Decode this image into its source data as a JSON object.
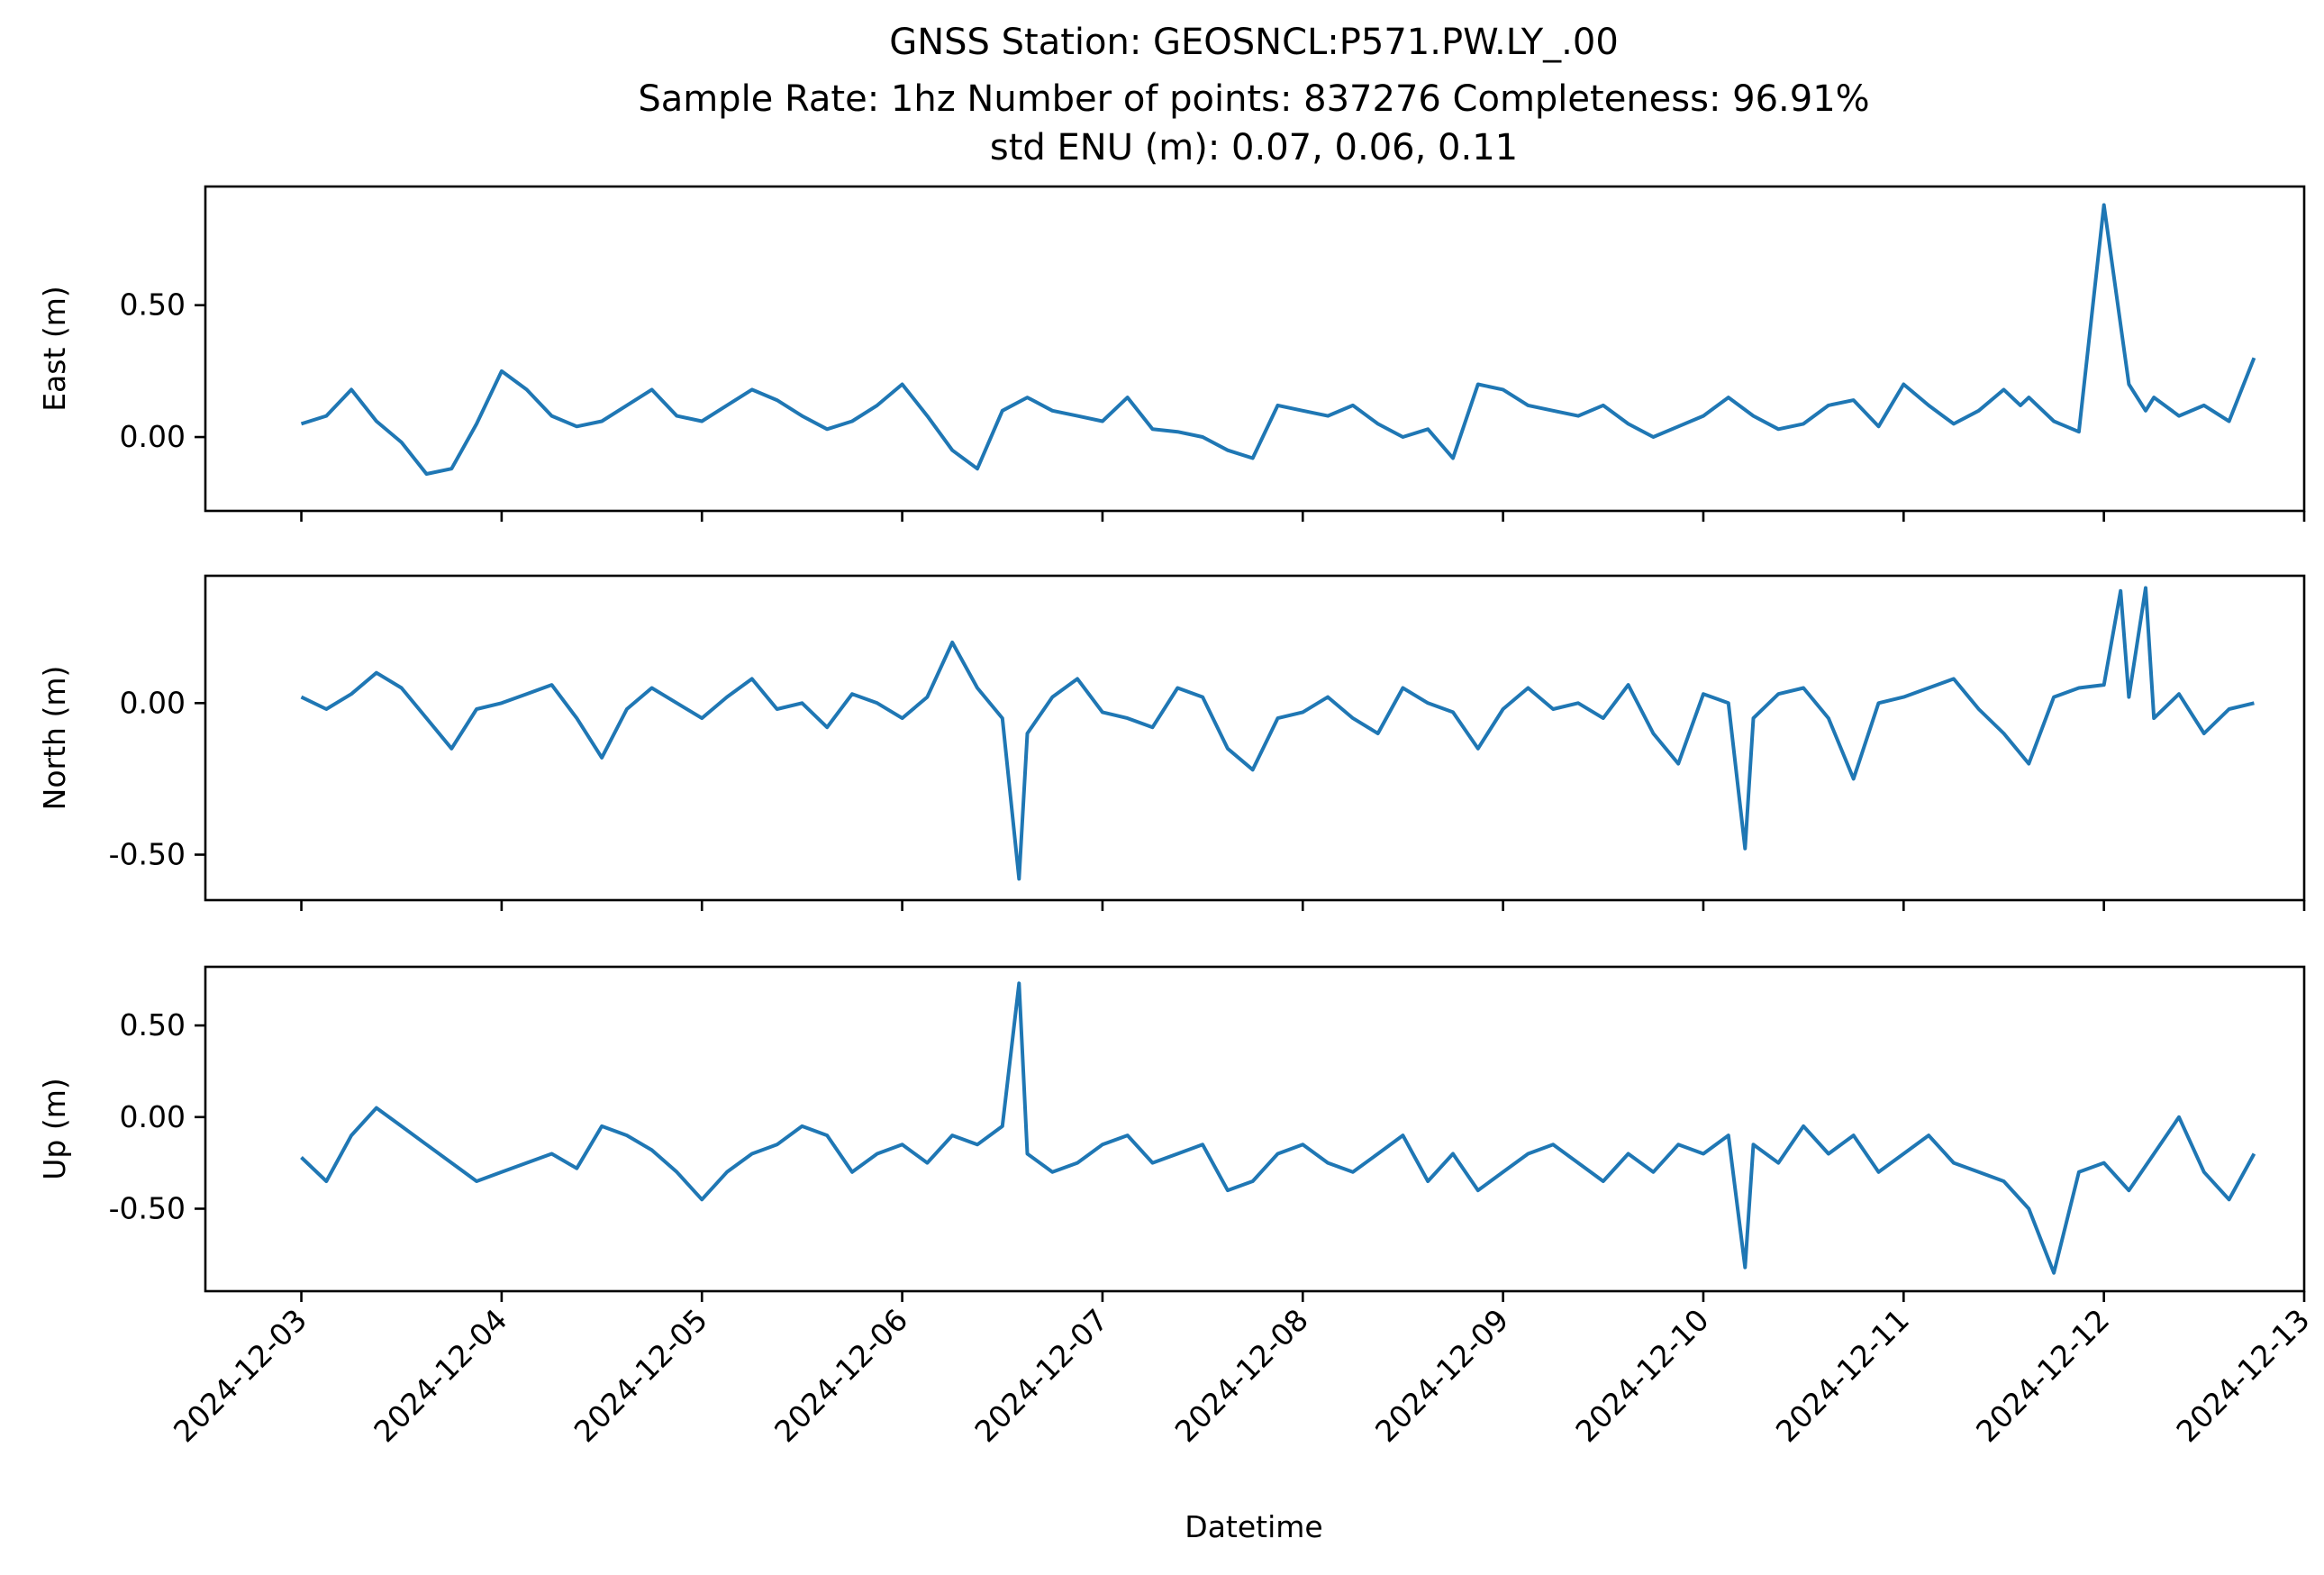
{
  "chart_data": {
    "type": "line",
    "title_lines": [
      "GNSS Station: GEOSNCL:P571.PW.LY_.00",
      "Sample Rate: 1hz   Number of points: 837276    Completeness:  96.91%",
      "std ENU (m):  0.07, 0.06, 0.11"
    ],
    "xlabel": "Datetime",
    "x_tick_labels": [
      "2024-12-03",
      "2024-12-04",
      "2024-12-05",
      "2024-12-06",
      "2024-12-07",
      "2024-12-08",
      "2024-12-09",
      "2024-12-10",
      "2024-12-11",
      "2024-12-12",
      "2024-12-13"
    ],
    "xlim": [
      "2024-12-02T12:30",
      "2024-12-13T00:00"
    ],
    "color": "#1f77b4",
    "panels": [
      {
        "ylabel": "East (m)",
        "ylim": [
          -0.28,
          0.95
        ],
        "yticks": [
          0.0,
          0.5
        ],
        "ytick_labels": [
          "0.00",
          "0.50"
        ],
        "x": [
          "2024-12-03T00:00",
          "2024-12-03T03:00",
          "2024-12-03T06:00",
          "2024-12-03T09:00",
          "2024-12-03T12:00",
          "2024-12-03T15:00",
          "2024-12-03T18:00",
          "2024-12-03T21:00",
          "2024-12-04T00:00",
          "2024-12-04T03:00",
          "2024-12-04T06:00",
          "2024-12-04T09:00",
          "2024-12-04T12:00",
          "2024-12-04T15:00",
          "2024-12-04T18:00",
          "2024-12-04T21:00",
          "2024-12-05T00:00",
          "2024-12-05T03:00",
          "2024-12-05T06:00",
          "2024-12-05T09:00",
          "2024-12-05T12:00",
          "2024-12-05T15:00",
          "2024-12-05T18:00",
          "2024-12-05T21:00",
          "2024-12-06T00:00",
          "2024-12-06T03:00",
          "2024-12-06T06:00",
          "2024-12-06T09:00",
          "2024-12-06T12:00",
          "2024-12-06T15:00",
          "2024-12-06T18:00",
          "2024-12-06T21:00",
          "2024-12-07T00:00",
          "2024-12-07T03:00",
          "2024-12-07T06:00",
          "2024-12-07T09:00",
          "2024-12-07T12:00",
          "2024-12-07T15:00",
          "2024-12-07T18:00",
          "2024-12-07T21:00",
          "2024-12-08T00:00",
          "2024-12-08T03:00",
          "2024-12-08T06:00",
          "2024-12-08T09:00",
          "2024-12-08T12:00",
          "2024-12-08T15:00",
          "2024-12-08T18:00",
          "2024-12-08T21:00",
          "2024-12-09T00:00",
          "2024-12-09T03:00",
          "2024-12-09T06:00",
          "2024-12-09T09:00",
          "2024-12-09T12:00",
          "2024-12-09T15:00",
          "2024-12-09T18:00",
          "2024-12-09T21:00",
          "2024-12-10T00:00",
          "2024-12-10T03:00",
          "2024-12-10T06:00",
          "2024-12-10T09:00",
          "2024-12-10T12:00",
          "2024-12-10T15:00",
          "2024-12-10T18:00",
          "2024-12-10T21:00",
          "2024-12-11T00:00",
          "2024-12-11T03:00",
          "2024-12-11T06:00",
          "2024-12-11T09:00",
          "2024-12-11T12:00",
          "2024-12-11T14:00",
          "2024-12-11T15:00",
          "2024-12-11T18:00",
          "2024-12-11T21:00",
          "2024-12-12T00:00",
          "2024-12-12T03:00",
          "2024-12-12T05:00",
          "2024-12-12T06:00",
          "2024-12-12T09:00",
          "2024-12-12T12:00",
          "2024-12-12T15:00",
          "2024-12-12T18:00"
        ],
        "values": [
          0.05,
          0.08,
          0.18,
          0.06,
          -0.02,
          -0.14,
          -0.12,
          0.05,
          0.25,
          0.18,
          0.08,
          0.04,
          0.06,
          0.12,
          0.18,
          0.08,
          0.06,
          0.12,
          0.18,
          0.14,
          0.08,
          0.03,
          0.06,
          0.12,
          0.2,
          0.08,
          -0.05,
          -0.12,
          0.1,
          0.15,
          0.1,
          0.08,
          0.06,
          0.15,
          0.03,
          0.02,
          0.0,
          -0.05,
          -0.08,
          0.12,
          0.1,
          0.08,
          0.12,
          0.05,
          0.0,
          0.03,
          -0.08,
          0.2,
          0.18,
          0.12,
          0.1,
          0.08,
          0.12,
          0.05,
          0.0,
          0.04,
          0.08,
          0.15,
          0.08,
          0.03,
          0.05,
          0.12,
          0.14,
          0.04,
          0.2,
          0.12,
          0.05,
          0.1,
          0.18,
          0.12,
          0.15,
          0.06,
          0.02,
          0.88,
          0.2,
          0.1,
          0.15,
          0.08,
          0.12,
          0.06,
          0.3
        ]
      },
      {
        "ylabel": "North (m)",
        "ylim": [
          -0.65,
          0.42
        ],
        "yticks": [
          -0.5,
          0.0
        ],
        "ytick_labels": [
          "-0.50",
          "0.00"
        ],
        "x": [
          "2024-12-03T00:00",
          "2024-12-03T03:00",
          "2024-12-03T06:00",
          "2024-12-03T09:00",
          "2024-12-03T12:00",
          "2024-12-03T15:00",
          "2024-12-03T18:00",
          "2024-12-03T21:00",
          "2024-12-04T00:00",
          "2024-12-04T03:00",
          "2024-12-04T06:00",
          "2024-12-04T09:00",
          "2024-12-04T12:00",
          "2024-12-04T15:00",
          "2024-12-04T18:00",
          "2024-12-04T21:00",
          "2024-12-05T00:00",
          "2024-12-05T03:00",
          "2024-12-05T06:00",
          "2024-12-05T09:00",
          "2024-12-05T12:00",
          "2024-12-05T15:00",
          "2024-12-05T18:00",
          "2024-12-05T21:00",
          "2024-12-06T00:00",
          "2024-12-06T03:00",
          "2024-12-06T06:00",
          "2024-12-06T09:00",
          "2024-12-06T12:00",
          "2024-12-06T14:00",
          "2024-12-06T15:00",
          "2024-12-06T18:00",
          "2024-12-06T21:00",
          "2024-12-07T00:00",
          "2024-12-07T03:00",
          "2024-12-07T06:00",
          "2024-12-07T09:00",
          "2024-12-07T12:00",
          "2024-12-07T15:00",
          "2024-12-07T18:00",
          "2024-12-07T21:00",
          "2024-12-08T00:00",
          "2024-12-08T03:00",
          "2024-12-08T06:00",
          "2024-12-08T09:00",
          "2024-12-08T12:00",
          "2024-12-08T15:00",
          "2024-12-08T18:00",
          "2024-12-08T21:00",
          "2024-12-09T00:00",
          "2024-12-09T03:00",
          "2024-12-09T06:00",
          "2024-12-09T09:00",
          "2024-12-09T12:00",
          "2024-12-09T15:00",
          "2024-12-09T18:00",
          "2024-12-09T21:00",
          "2024-12-10T00:00",
          "2024-12-10T03:00",
          "2024-12-10T05:00",
          "2024-12-10T06:00",
          "2024-12-10T09:00",
          "2024-12-10T12:00",
          "2024-12-10T15:00",
          "2024-12-10T18:00",
          "2024-12-10T21:00",
          "2024-12-11T00:00",
          "2024-12-11T03:00",
          "2024-12-11T06:00",
          "2024-12-11T09:00",
          "2024-12-11T12:00",
          "2024-12-11T15:00",
          "2024-12-11T18:00",
          "2024-12-11T21:00",
          "2024-12-12T00:00",
          "2024-12-12T02:00",
          "2024-12-12T03:00",
          "2024-12-12T05:00",
          "2024-12-12T06:00",
          "2024-12-12T09:00",
          "2024-12-12T12:00",
          "2024-12-12T15:00",
          "2024-12-12T18:00"
        ],
        "values": [
          0.02,
          -0.02,
          0.03,
          0.1,
          0.05,
          -0.05,
          -0.15,
          -0.02,
          0.0,
          0.03,
          0.06,
          -0.05,
          -0.18,
          -0.02,
          0.05,
          0.0,
          -0.05,
          0.02,
          0.08,
          -0.02,
          0.0,
          -0.08,
          0.03,
          0.0,
          -0.05,
          0.02,
          0.2,
          0.05,
          -0.05,
          -0.58,
          -0.1,
          0.02,
          0.08,
          -0.03,
          -0.05,
          -0.08,
          0.05,
          0.02,
          -0.15,
          -0.22,
          -0.05,
          -0.03,
          0.02,
          -0.05,
          -0.1,
          0.05,
          0.0,
          -0.03,
          -0.15,
          -0.02,
          0.05,
          -0.02,
          0.0,
          -0.05,
          0.06,
          -0.1,
          -0.2,
          0.03,
          0.0,
          -0.48,
          -0.05,
          0.03,
          0.05,
          -0.05,
          -0.25,
          0.0,
          0.02,
          0.05,
          0.08,
          -0.02,
          -0.1,
          -0.2,
          0.02,
          0.05,
          0.06,
          0.37,
          0.02,
          0.38,
          -0.05,
          0.03,
          -0.1,
          -0.02,
          0.0
        ]
      },
      {
        "ylabel": "Up (m)",
        "ylim": [
          -0.95,
          0.82
        ],
        "yticks": [
          -0.5,
          0.0,
          0.5
        ],
        "ytick_labels": [
          "-0.50",
          "0.00",
          "0.50"
        ],
        "x": [
          "2024-12-03T00:00",
          "2024-12-03T03:00",
          "2024-12-03T06:00",
          "2024-12-03T09:00",
          "2024-12-03T12:00",
          "2024-12-03T15:00",
          "2024-12-03T18:00",
          "2024-12-03T21:00",
          "2024-12-04T00:00",
          "2024-12-04T03:00",
          "2024-12-04T06:00",
          "2024-12-04T09:00",
          "2024-12-04T12:00",
          "2024-12-04T15:00",
          "2024-12-04T18:00",
          "2024-12-04T21:00",
          "2024-12-05T00:00",
          "2024-12-05T03:00",
          "2024-12-05T06:00",
          "2024-12-05T09:00",
          "2024-12-05T12:00",
          "2024-12-05T15:00",
          "2024-12-05T18:00",
          "2024-12-05T21:00",
          "2024-12-06T00:00",
          "2024-12-06T03:00",
          "2024-12-06T06:00",
          "2024-12-06T09:00",
          "2024-12-06T12:00",
          "2024-12-06T14:00",
          "2024-12-06T15:00",
          "2024-12-06T18:00",
          "2024-12-06T21:00",
          "2024-12-07T00:00",
          "2024-12-07T03:00",
          "2024-12-07T06:00",
          "2024-12-07T09:00",
          "2024-12-07T12:00",
          "2024-12-07T15:00",
          "2024-12-07T18:00",
          "2024-12-07T21:00",
          "2024-12-08T00:00",
          "2024-12-08T03:00",
          "2024-12-08T06:00",
          "2024-12-08T09:00",
          "2024-12-08T12:00",
          "2024-12-08T15:00",
          "2024-12-08T18:00",
          "2024-12-08T21:00",
          "2024-12-09T00:00",
          "2024-12-09T03:00",
          "2024-12-09T06:00",
          "2024-12-09T09:00",
          "2024-12-09T12:00",
          "2024-12-09T15:00",
          "2024-12-09T18:00",
          "2024-12-09T21:00",
          "2024-12-10T00:00",
          "2024-12-10T03:00",
          "2024-12-10T05:00",
          "2024-12-10T06:00",
          "2024-12-10T09:00",
          "2024-12-10T12:00",
          "2024-12-10T15:00",
          "2024-12-10T18:00",
          "2024-12-10T21:00",
          "2024-12-11T00:00",
          "2024-12-11T03:00",
          "2024-12-11T06:00",
          "2024-12-11T09:00",
          "2024-12-11T12:00",
          "2024-12-11T15:00",
          "2024-12-11T18:00",
          "2024-12-11T21:00",
          "2024-12-12T00:00",
          "2024-12-12T03:00",
          "2024-12-12T06:00",
          "2024-12-12T09:00",
          "2024-12-12T12:00",
          "2024-12-12T15:00",
          "2024-12-12T18:00"
        ],
        "values": [
          -0.22,
          -0.35,
          -0.1,
          0.05,
          -0.05,
          -0.15,
          -0.25,
          -0.35,
          -0.3,
          -0.25,
          -0.2,
          -0.28,
          -0.05,
          -0.1,
          -0.18,
          -0.3,
          -0.45,
          -0.3,
          -0.2,
          -0.15,
          -0.05,
          -0.1,
          -0.3,
          -0.2,
          -0.15,
          -0.25,
          -0.1,
          -0.15,
          -0.05,
          0.73,
          -0.2,
          -0.3,
          -0.25,
          -0.15,
          -0.1,
          -0.25,
          -0.2,
          -0.15,
          -0.4,
          -0.35,
          -0.2,
          -0.15,
          -0.25,
          -0.3,
          -0.2,
          -0.1,
          -0.35,
          -0.2,
          -0.4,
          -0.3,
          -0.2,
          -0.15,
          -0.25,
          -0.35,
          -0.2,
          -0.3,
          -0.15,
          -0.2,
          -0.1,
          -0.82,
          -0.15,
          -0.25,
          -0.05,
          -0.2,
          -0.1,
          -0.3,
          -0.2,
          -0.1,
          -0.25,
          -0.3,
          -0.35,
          -0.5,
          -0.85,
          -0.3,
          -0.25,
          -0.4,
          -0.2,
          0.0,
          -0.3,
          -0.45,
          -0.2
        ]
      }
    ]
  }
}
